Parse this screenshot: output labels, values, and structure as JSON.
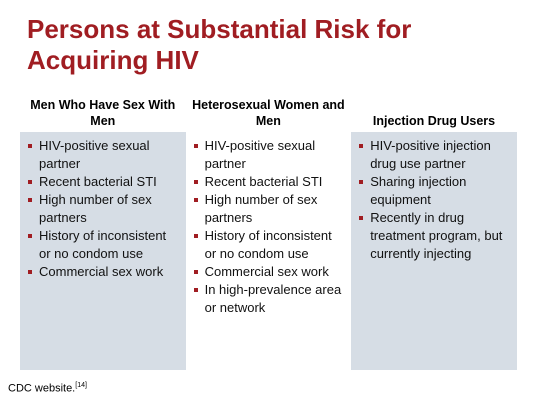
{
  "title": "Persons at Substantial Risk for Acquiring HIV",
  "table": {
    "columns": [
      {
        "header": "Men Who Have Sex With Men",
        "items": [
          "HIV-positive sexual partner",
          "Recent bacterial STI",
          "High number of sex partners",
          "History of inconsistent or no condom use",
          "Commercial sex work"
        ]
      },
      {
        "header": "Heterosexual Women and Men",
        "items": [
          "HIV-positive sexual partner",
          "Recent bacterial STI",
          "High number of sex partners",
          "History of inconsistent or no condom use",
          "Commercial sex work",
          "In high-prevalence area or network"
        ]
      },
      {
        "header": "Injection Drug Users",
        "items": [
          "HIV-positive injection drug use partner",
          "Sharing injection equipment",
          "Recently in drug treatment program, but currently injecting"
        ]
      }
    ]
  },
  "footer": {
    "source": "CDC website.",
    "reference": "[14]"
  }
}
